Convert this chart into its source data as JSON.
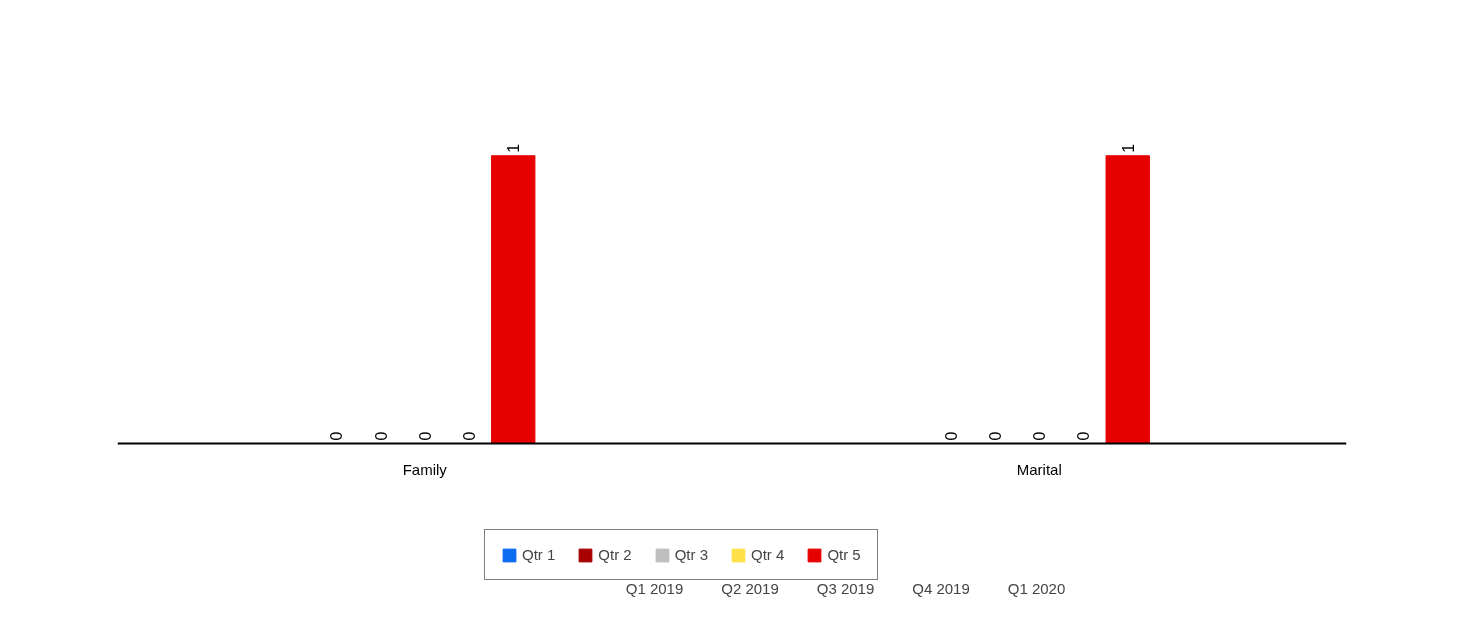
{
  "chart_data": {
    "type": "bar",
    "categories": [
      "Family",
      "Marital"
    ],
    "series": [
      {
        "name": "Qtr 1",
        "color": "#0a6cf0",
        "values": [
          0,
          0
        ]
      },
      {
        "name": "Qtr 2",
        "color": "#a80000",
        "values": [
          0,
          0
        ]
      },
      {
        "name": "Qtr 3",
        "color": "#bebebe",
        "values": [
          0,
          0
        ]
      },
      {
        "name": "Qtr 4",
        "color": "#ffe04a",
        "values": [
          0,
          0
        ]
      },
      {
        "name": "Qtr 5",
        "color": "#e60000",
        "values": [
          1,
          1
        ]
      }
    ],
    "data_labels": true,
    "grid": false,
    "legend": "bottom",
    "annotations": [
      "Q1 2019",
      "Q2 2019",
      "Q3 2019",
      "Q4 2019",
      "Q1 2020"
    ]
  }
}
